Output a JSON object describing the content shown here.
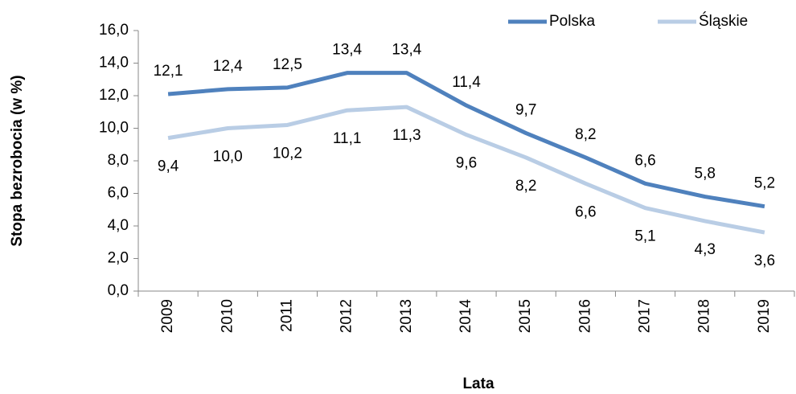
{
  "chart_data": {
    "type": "line",
    "x_label": "Lata",
    "y_label": "Stopa bezrobocia (w %)",
    "categories": [
      "2009",
      "2010",
      "2011",
      "2012",
      "2013",
      "2014",
      "2015",
      "2016",
      "2017",
      "2018",
      "2019"
    ],
    "series": [
      {
        "name": "Polska",
        "color": "#4f81bd",
        "values": [
          12.1,
          12.4,
          12.5,
          13.4,
          13.4,
          11.4,
          9.7,
          8.2,
          6.6,
          5.8,
          5.2
        ],
        "value_labels": [
          "12,1",
          "12,4",
          "12,5",
          "13,4",
          "13,4",
          "11,4",
          "9,7",
          "8,2",
          "6,6",
          "5,8",
          "5,2"
        ]
      },
      {
        "name": "Śląskie",
        "color": "#b9cde5",
        "values": [
          9.4,
          10.0,
          10.2,
          11.1,
          11.3,
          9.6,
          8.2,
          6.6,
          5.1,
          4.3,
          3.6
        ],
        "value_labels": [
          "9,4",
          "10,0",
          "10,2",
          "11,1",
          "11,3",
          "9,6",
          "8,2",
          "6,6",
          "5,1",
          "4,3",
          "3,6"
        ]
      }
    ],
    "ylim": [
      0,
      16
    ],
    "yticks": [
      {
        "value": 0,
        "label": "0,0"
      },
      {
        "value": 2,
        "label": "2,0"
      },
      {
        "value": 4,
        "label": "4,0"
      },
      {
        "value": 6,
        "label": "6,0"
      },
      {
        "value": 8,
        "label": "8,0"
      },
      {
        "value": 10,
        "label": "10,0"
      },
      {
        "value": 12,
        "label": "12,0"
      },
      {
        "value": 14,
        "label": "14,0"
      },
      {
        "value": 16,
        "label": "16,0"
      }
    ],
    "legend": "top-right",
    "grid": false
  }
}
